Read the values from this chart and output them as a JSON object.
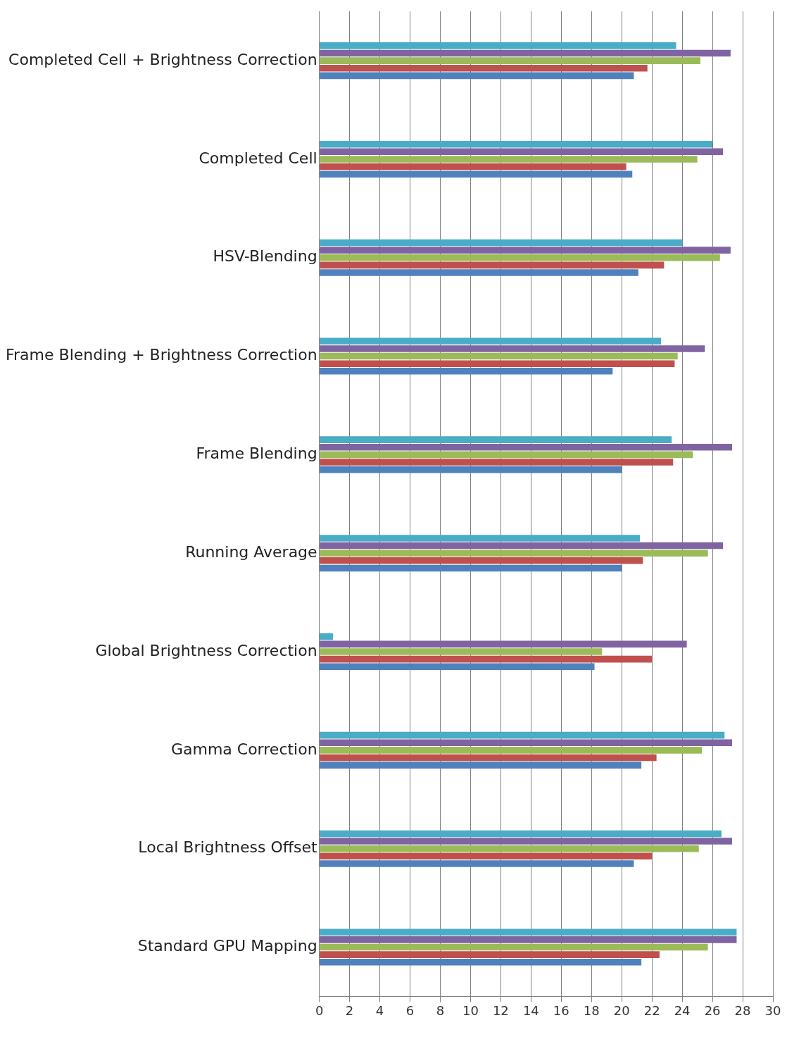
{
  "chart_data": {
    "type": "bar",
    "orientation": "horizontal",
    "categories": [
      "Completed Cell + Brightness Correction",
      "Completed Cell",
      "HSV-Blending",
      "Frame Blending + Brightness Correction",
      "Frame Blending",
      "Running Average",
      "Global Brightness Correction",
      "Gamma Correction",
      "Local Brightness Offset",
      "Standard GPU Mapping"
    ],
    "series": [
      {
        "color": "#4bacc6",
        "values": [
          23.6,
          26.0,
          24.0,
          22.6,
          23.3,
          21.2,
          0.9,
          26.8,
          26.6,
          27.6
        ]
      },
      {
        "color": "#8064a2",
        "values": [
          27.2,
          26.7,
          27.2,
          25.5,
          27.3,
          26.7,
          24.3,
          27.3,
          27.3,
          27.6
        ]
      },
      {
        "color": "#9bbb59",
        "values": [
          25.2,
          25.0,
          26.5,
          23.7,
          24.7,
          25.7,
          18.7,
          25.3,
          25.1,
          25.7
        ]
      },
      {
        "color": "#c0504d",
        "values": [
          21.7,
          20.3,
          22.8,
          23.5,
          23.4,
          21.4,
          22.0,
          22.3,
          22.0,
          22.5
        ]
      },
      {
        "color": "#4f81bd",
        "values": [
          20.8,
          20.7,
          21.1,
          19.4,
          20.0,
          20.0,
          18.2,
          21.3,
          20.8,
          21.3
        ]
      }
    ],
    "xlim": [
      0,
      30
    ],
    "xticks": [
      0,
      2,
      4,
      6,
      8,
      10,
      12,
      14,
      16,
      18,
      20,
      22,
      24,
      26,
      28,
      30
    ],
    "grid": "x"
  }
}
